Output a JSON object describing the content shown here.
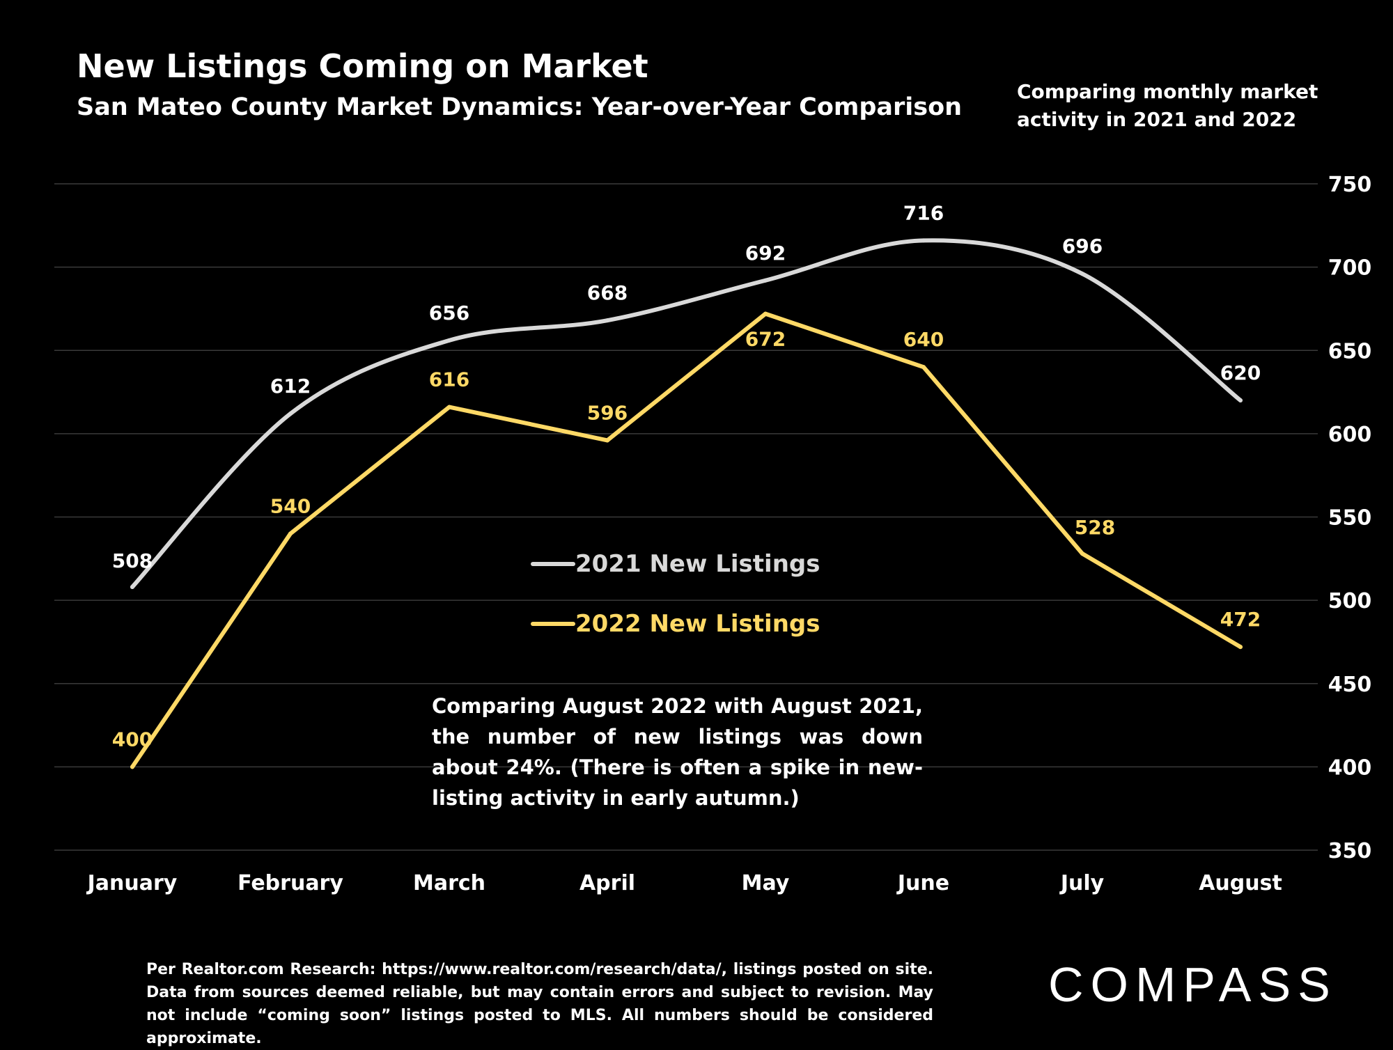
{
  "header": {
    "title": "New Listings Coming on Market",
    "subtitle": "San Mateo County Market Dynamics: Year-over-Year Comparison",
    "side_note": "Comparing monthly market activity in 2021 and 2022"
  },
  "annotation": "Comparing August 2022 with August 2021, the number of new listings was down about 24%. (There is often a spike in new-listing activity in early autumn.)",
  "footer": "Per Realtor.com Research: https://www.realtor.com/research/data/, listings posted on site. Data from sources deemed reliable, but may contain errors and subject to revision. May not include “coming soon” listings posted to MLS. All numbers should be considered approximate.",
  "logo_text": "COMPASS",
  "colors": {
    "background": "#000000",
    "series_2021": "#d9d9d9",
    "series_2022": "#ffd966",
    "grid": "#3a3a3a"
  },
  "chart_data": {
    "type": "line",
    "categories": [
      "January",
      "February",
      "March",
      "April",
      "May",
      "June",
      "July",
      "August"
    ],
    "series": [
      {
        "name": "2021 New Listings",
        "values": [
          508,
          612,
          656,
          668,
          692,
          716,
          696,
          620
        ],
        "smooth": true
      },
      {
        "name": "2022 New Listings",
        "values": [
          400,
          540,
          616,
          596,
          672,
          640,
          528,
          472
        ],
        "smooth": false
      }
    ],
    "ylim": [
      350,
      750
    ],
    "yticks": [
      350,
      400,
      450,
      500,
      550,
      600,
      650,
      700,
      750
    ],
    "y_axis_side": "right",
    "grid": true,
    "legend_placement": "center"
  }
}
